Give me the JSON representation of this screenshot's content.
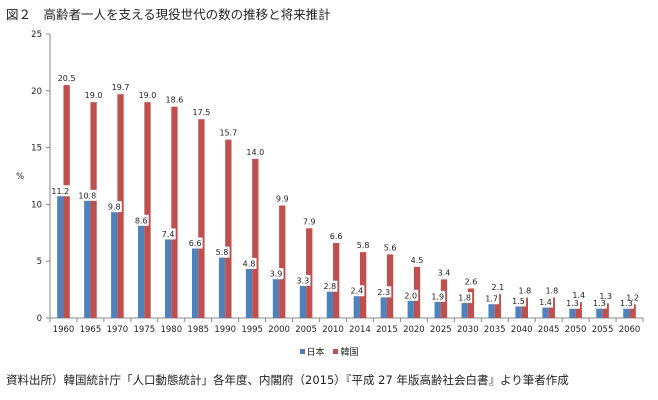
{
  "chart_data": {
    "type": "bar",
    "title": "図２　高齢者一人を支える現役世代の数の推移と将来推計",
    "ylabel": "%",
    "ylim": [
      0,
      25
    ],
    "yticks": [
      0,
      5,
      10,
      15,
      20,
      25
    ],
    "categories": [
      "1960",
      "1965",
      "1970",
      "1975",
      "1980",
      "1985",
      "1990",
      "1995",
      "2000",
      "2005",
      "2010",
      "2014",
      "2015",
      "2020",
      "2025",
      "2030",
      "2035",
      "2040",
      "2045",
      "2050",
      "2055",
      "2060"
    ],
    "series": [
      {
        "name": "日本",
        "color": "#4f81bd",
        "values": [
          11.2,
          10.8,
          9.8,
          8.6,
          7.4,
          6.6,
          5.8,
          4.8,
          3.9,
          3.3,
          2.8,
          2.4,
          2.3,
          2.0,
          1.9,
          1.8,
          1.7,
          1.5,
          1.4,
          1.3,
          1.3,
          1.3
        ],
        "labels": [
          "11.2",
          "10.8",
          "9.8",
          "8.6",
          "7.4",
          "6.6",
          "5.8",
          "4.8",
          "3.9",
          "3.3",
          "2.8",
          "2.4",
          "2.3",
          "2.0",
          "1.9",
          "1.8",
          "1.7",
          "1.5",
          "1.4",
          "1.3",
          "1.3",
          "1.3"
        ]
      },
      {
        "name": "韓国",
        "color": "#c0504d",
        "values": [
          20.5,
          19.0,
          19.7,
          19.0,
          18.6,
          17.5,
          15.7,
          14.0,
          9.9,
          7.9,
          6.6,
          5.8,
          5.6,
          4.5,
          3.4,
          2.6,
          2.1,
          1.8,
          1.8,
          1.4,
          1.3,
          1.2
        ],
        "labels": [
          "20.5",
          "19.0",
          "19.7",
          "19.0",
          "18.6",
          "17.5",
          "15.7",
          "14.0",
          "9.9",
          "7.9",
          "6.6",
          "5.8",
          "5.6",
          "4.5",
          "3.4",
          "2.6",
          "2.1",
          "1.8",
          "1.8",
          "1.4",
          "1.3",
          "1.2"
        ]
      }
    ],
    "legend_position": "bottom",
    "grid": false
  },
  "source_note": "資料出所）韓国統計庁「人口動態統計」各年度、内閣府（2015）『平成 27 年版高齢社会白書』より筆者作成"
}
